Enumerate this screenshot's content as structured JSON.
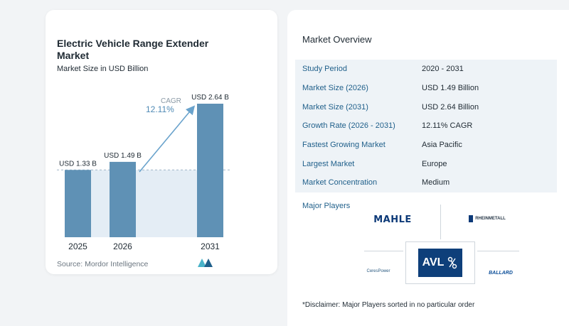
{
  "chart": {
    "title": "Electric Vehicle Range Extender Market",
    "subtitle": "Market Size in USD Billion",
    "cagr_label": "CAGR",
    "cagr_value": "12.11%",
    "source": "Source: Mordor Intelligence"
  },
  "chart_data": {
    "type": "bar",
    "categories": [
      "2025",
      "2026",
      "2031"
    ],
    "values": [
      1.33,
      1.49,
      2.64
    ],
    "value_labels": [
      "USD 1.33 B",
      "USD 1.49 B",
      "USD 2.64 B"
    ],
    "title": "Electric Vehicle Range Extender Market",
    "subtitle": "Market Size in USD Billion",
    "xlabel": "",
    "ylabel": "",
    "ylim": [
      0,
      2.64
    ],
    "annotation": "CAGR 12.11%",
    "grid": false,
    "colors": {
      "bar": "#5f91b5",
      "bar_top": "#6d9fc2",
      "shade": "#e4edf5",
      "arrow": "#6aa3cc"
    }
  },
  "overview": {
    "title": "Market Overview",
    "rows": [
      {
        "label": "Study Period",
        "value": "2020 - 2031"
      },
      {
        "label": "Market Size (2026)",
        "value": "USD 1.49 Billion"
      },
      {
        "label": "Market Size (2031)",
        "value": "USD 2.64 Billion"
      },
      {
        "label": "Growth Rate (2026 - 2031)",
        "value": "12.11% CAGR"
      },
      {
        "label": "Fastest Growing Market",
        "value": "Asia Pacific"
      },
      {
        "label": "Largest Market",
        "value": "Europe"
      },
      {
        "label": "Market Concentration",
        "value": "Medium"
      }
    ]
  },
  "players": {
    "title": "Major Players",
    "logos": [
      "MAHLE",
      "RHEINMETALL",
      "AVL",
      "CeresPower",
      "BALLARD"
    ],
    "disclaimer": "*Disclaimer: Major Players sorted in no particular order"
  },
  "colors": {
    "accent": "#1f5f8a",
    "row_shade": "#eef3f7",
    "avl_bg": "#0e3f7a"
  }
}
